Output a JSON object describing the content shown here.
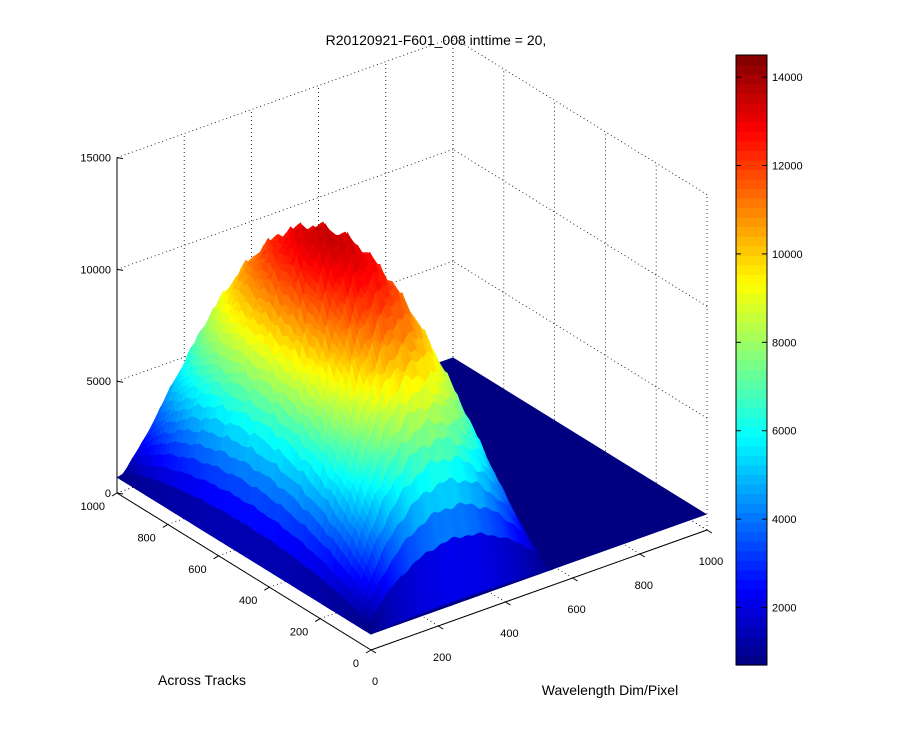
{
  "chart_data": {
    "type": "surface",
    "title": "R20120921-F601_008 inttime = 20,",
    "xlabel": "Wavelength Dim/Pixel",
    "ylabel": "Across Tracks",
    "zlabel": "",
    "xlim": [
      0,
      1000
    ],
    "ylim": [
      0,
      1000
    ],
    "zlim": [
      0,
      15000
    ],
    "x_ticks": [
      "0",
      "200",
      "400",
      "600",
      "800",
      "1000"
    ],
    "y_ticks": [
      "0",
      "200",
      "400",
      "600",
      "800",
      "1000"
    ],
    "z_ticks": [
      "0",
      "5000",
      "10000",
      "15000"
    ],
    "grid": true,
    "colormap": "jet",
    "colorbar": {
      "range": [
        700,
        14500
      ],
      "ticks": [
        "2000",
        "4000",
        "6000",
        "8000",
        "10000",
        "12000",
        "14000"
      ]
    },
    "surface": {
      "baseline": 700,
      "peak": 14500,
      "signal_x_range": [
        0,
        1000
      ],
      "signal_y_range": [
        0,
        1000
      ],
      "signal_profile": "arched response across wavelength; bright region between across-track ~0 and ~1000 near wavelength ~0-500"
    },
    "sample_rows": [
      {
        "across_track": 0,
        "x": [
          0,
          100,
          200,
          300,
          400,
          500
        ],
        "z": [
          1800,
          3500,
          4300,
          4600,
          4200,
          2500
        ]
      },
      {
        "across_track": 500,
        "x": [
          0,
          100,
          200,
          300,
          400,
          500
        ],
        "z": [
          5000,
          10500,
          12800,
          14000,
          12500,
          7000
        ]
      },
      {
        "across_track": 1000,
        "x": [
          0,
          100,
          200,
          300,
          400,
          500
        ],
        "z": [
          1800,
          3500,
          4300,
          4600,
          4200,
          2500
        ]
      }
    ]
  }
}
